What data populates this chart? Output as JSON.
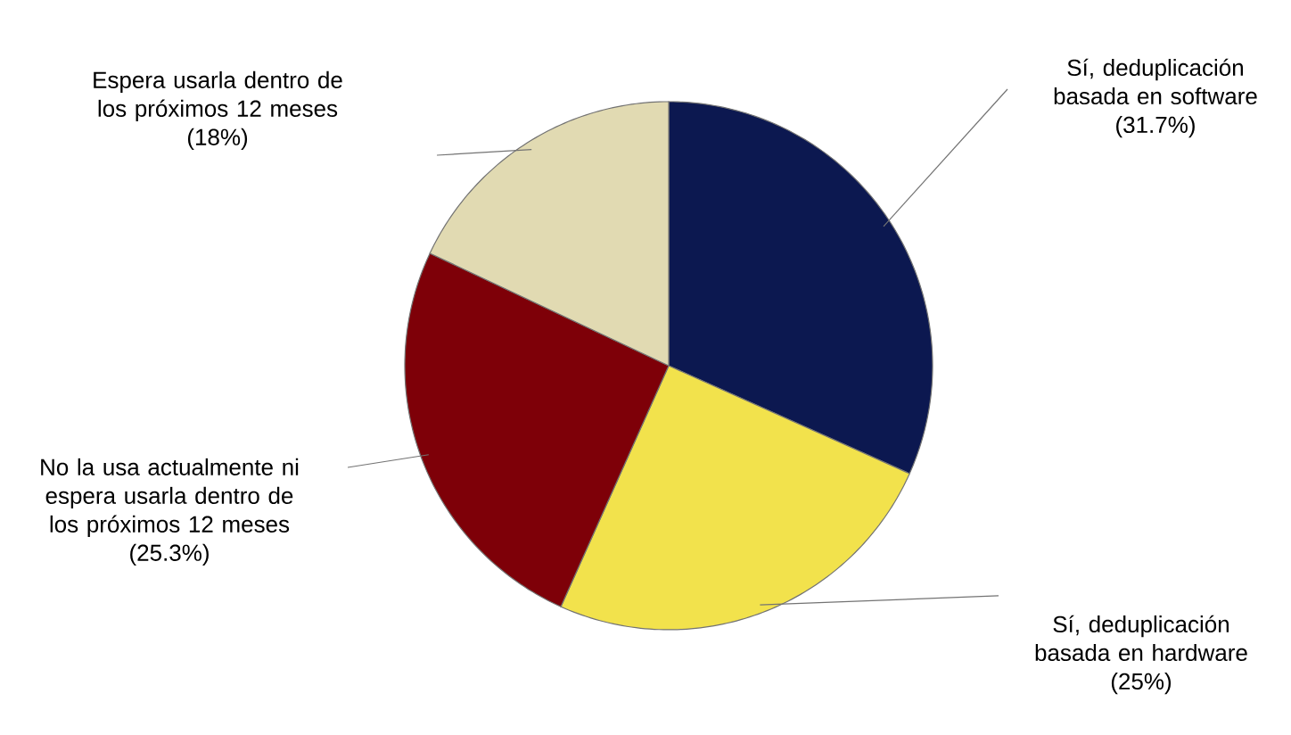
{
  "chart_data": {
    "type": "pie",
    "categories": [
      "Sí, deduplicación basada en software",
      "Sí, deduplicación basada en hardware",
      "No la usa actualmente ni espera usarla dentro de los próximos 12 meses",
      "Espera usarla dentro de los próximos 12 meses"
    ],
    "values": [
      31.7,
      25,
      25.3,
      18
    ],
    "value_labels": [
      "(31.7%)",
      "(25%)",
      "(25.3%)",
      "(18%)"
    ],
    "colors": [
      "#0c1850",
      "#f2e24c",
      "#7e0008",
      "#e1dab2"
    ]
  }
}
